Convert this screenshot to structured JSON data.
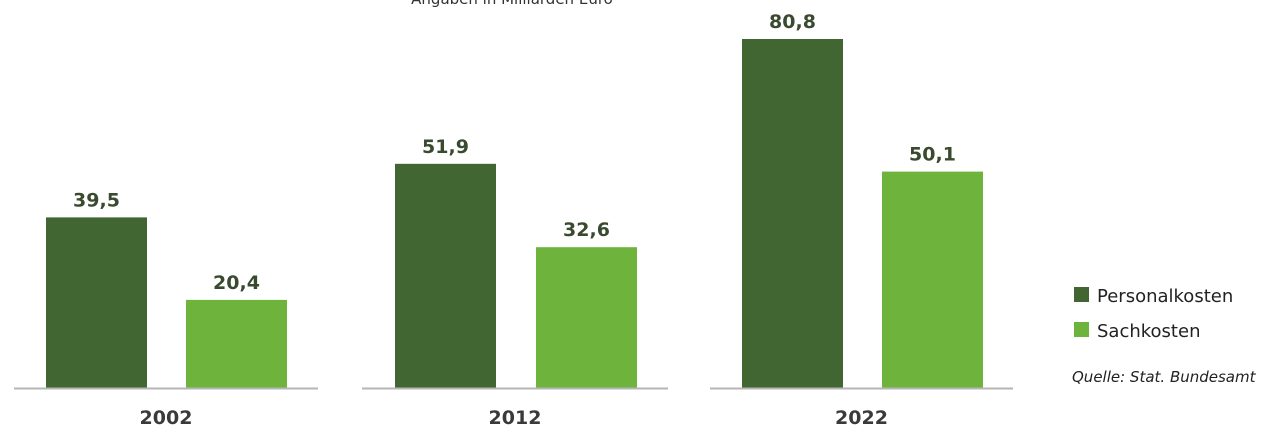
{
  "chart_data": {
    "type": "bar",
    "subtitle": "Angaben in Milliarden Euro",
    "categories": [
      "2002",
      "2012",
      "2022"
    ],
    "series": [
      {
        "name": "Personalkosten",
        "values": [
          39.5,
          51.9,
          80.8
        ],
        "labels": [
          "39,5",
          "51,9",
          "80,8"
        ],
        "color": "#426632"
      },
      {
        "name": "Sachkosten",
        "values": [
          20.4,
          32.6,
          50.1
        ],
        "labels": [
          "20,4",
          "32,6",
          "50,1"
        ],
        "color": "#6db33c"
      }
    ],
    "ylim": [
      0,
      82
    ],
    "grid": false,
    "legend_position": "right"
  },
  "source": "Quelle: Stat. Bundesamt"
}
